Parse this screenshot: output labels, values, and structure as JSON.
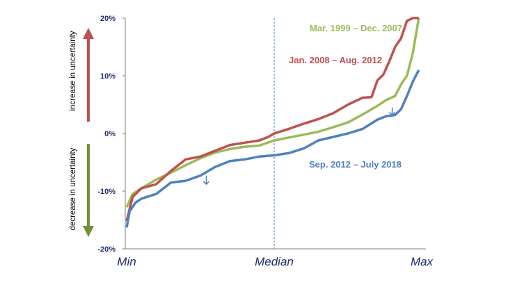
{
  "chart_data": {
    "type": "line",
    "title": "",
    "xlabel": "",
    "ylabel": "",
    "ylim": [
      -20,
      20
    ],
    "y_ticks": [
      "20%",
      "10%",
      "0%",
      "-10%",
      "-20%"
    ],
    "y_tick_values": [
      20,
      10,
      0,
      -10,
      -20
    ],
    "x_ticks": [
      "Min",
      "Median",
      "Max"
    ],
    "x_range": [
      0,
      100
    ],
    "grid": false,
    "colors": {
      "red": "#c0504d",
      "green": "#9bbb59",
      "blue": "#4f81bd",
      "axis": "#1f2d6b"
    },
    "series": [
      {
        "name": "Mar. 1999 – Dec. 2007",
        "color": "#9bbb59",
        "x": [
          0,
          2,
          5,
          10,
          15,
          20,
          25,
          30,
          35,
          40,
          45,
          50,
          55,
          60,
          65,
          70,
          75,
          80,
          85,
          88,
          91,
          93,
          95,
          97,
          99
        ],
        "y": [
          -12.8,
          -10.5,
          -9.5,
          -8,
          -6.8,
          -5.5,
          -4.3,
          -3.3,
          -2.7,
          -2.3,
          -2.1,
          -1.2,
          -0.7,
          -0.2,
          0.3,
          1.1,
          1.9,
          3.3,
          4.8,
          5.8,
          6.5,
          8.5,
          10,
          14,
          22
        ]
      },
      {
        "name": "Jan. 2008 – Aug. 2012",
        "color": "#c0504d",
        "x": [
          0,
          2,
          5,
          10,
          15,
          20,
          25,
          30,
          35,
          40,
          45,
          48,
          50,
          55,
          60,
          65,
          70,
          75,
          80,
          83,
          85,
          87,
          89,
          91,
          93,
          95,
          97,
          99
        ],
        "y": [
          -15.2,
          -11,
          -9.5,
          -8.8,
          -6.5,
          -4.5,
          -4,
          -3,
          -2,
          -1.6,
          -1.2,
          -0.6,
          0,
          0.8,
          1.7,
          2.5,
          3.5,
          5,
          6.2,
          6.3,
          9.2,
          10.2,
          12.5,
          15,
          16.5,
          19.5,
          21,
          22
        ]
      },
      {
        "name": "Sep. 2012 – July 2018",
        "color": "#4f81bd",
        "x": [
          0,
          1,
          3,
          5,
          10,
          15,
          20,
          25,
          30,
          35,
          40,
          45,
          50,
          55,
          60,
          65,
          70,
          75,
          80,
          85,
          88,
          91,
          93,
          95,
          97,
          99
        ],
        "y": [
          -16.3,
          -13.5,
          -12,
          -11.3,
          -10.5,
          -8.5,
          -8.2,
          -7.3,
          -5.8,
          -4.8,
          -4.5,
          -4,
          -3.8,
          -3.4,
          -2.6,
          -1.2,
          -0.6,
          0,
          0.8,
          2.4,
          3,
          3.2,
          4.2,
          6.5,
          9,
          11
        ]
      }
    ],
    "series_labels": [
      {
        "text": "Mar. 1999 – Dec. 2007",
        "color": "#9bbb59"
      },
      {
        "text": "Jan. 2008 – Aug. 2012",
        "color": "#c0504d"
      },
      {
        "text": "Sep. 2012 – July 2018",
        "color": "#4f81bd"
      }
    ],
    "side_labels": [
      {
        "text": "increase in uncertainty",
        "color": "#c0504d"
      },
      {
        "text": "decrease in uncertainty",
        "color": "#6f8f2e"
      }
    ],
    "annotations": {
      "median_line": 50,
      "arrows_at_x": [
        27,
        90
      ]
    }
  }
}
